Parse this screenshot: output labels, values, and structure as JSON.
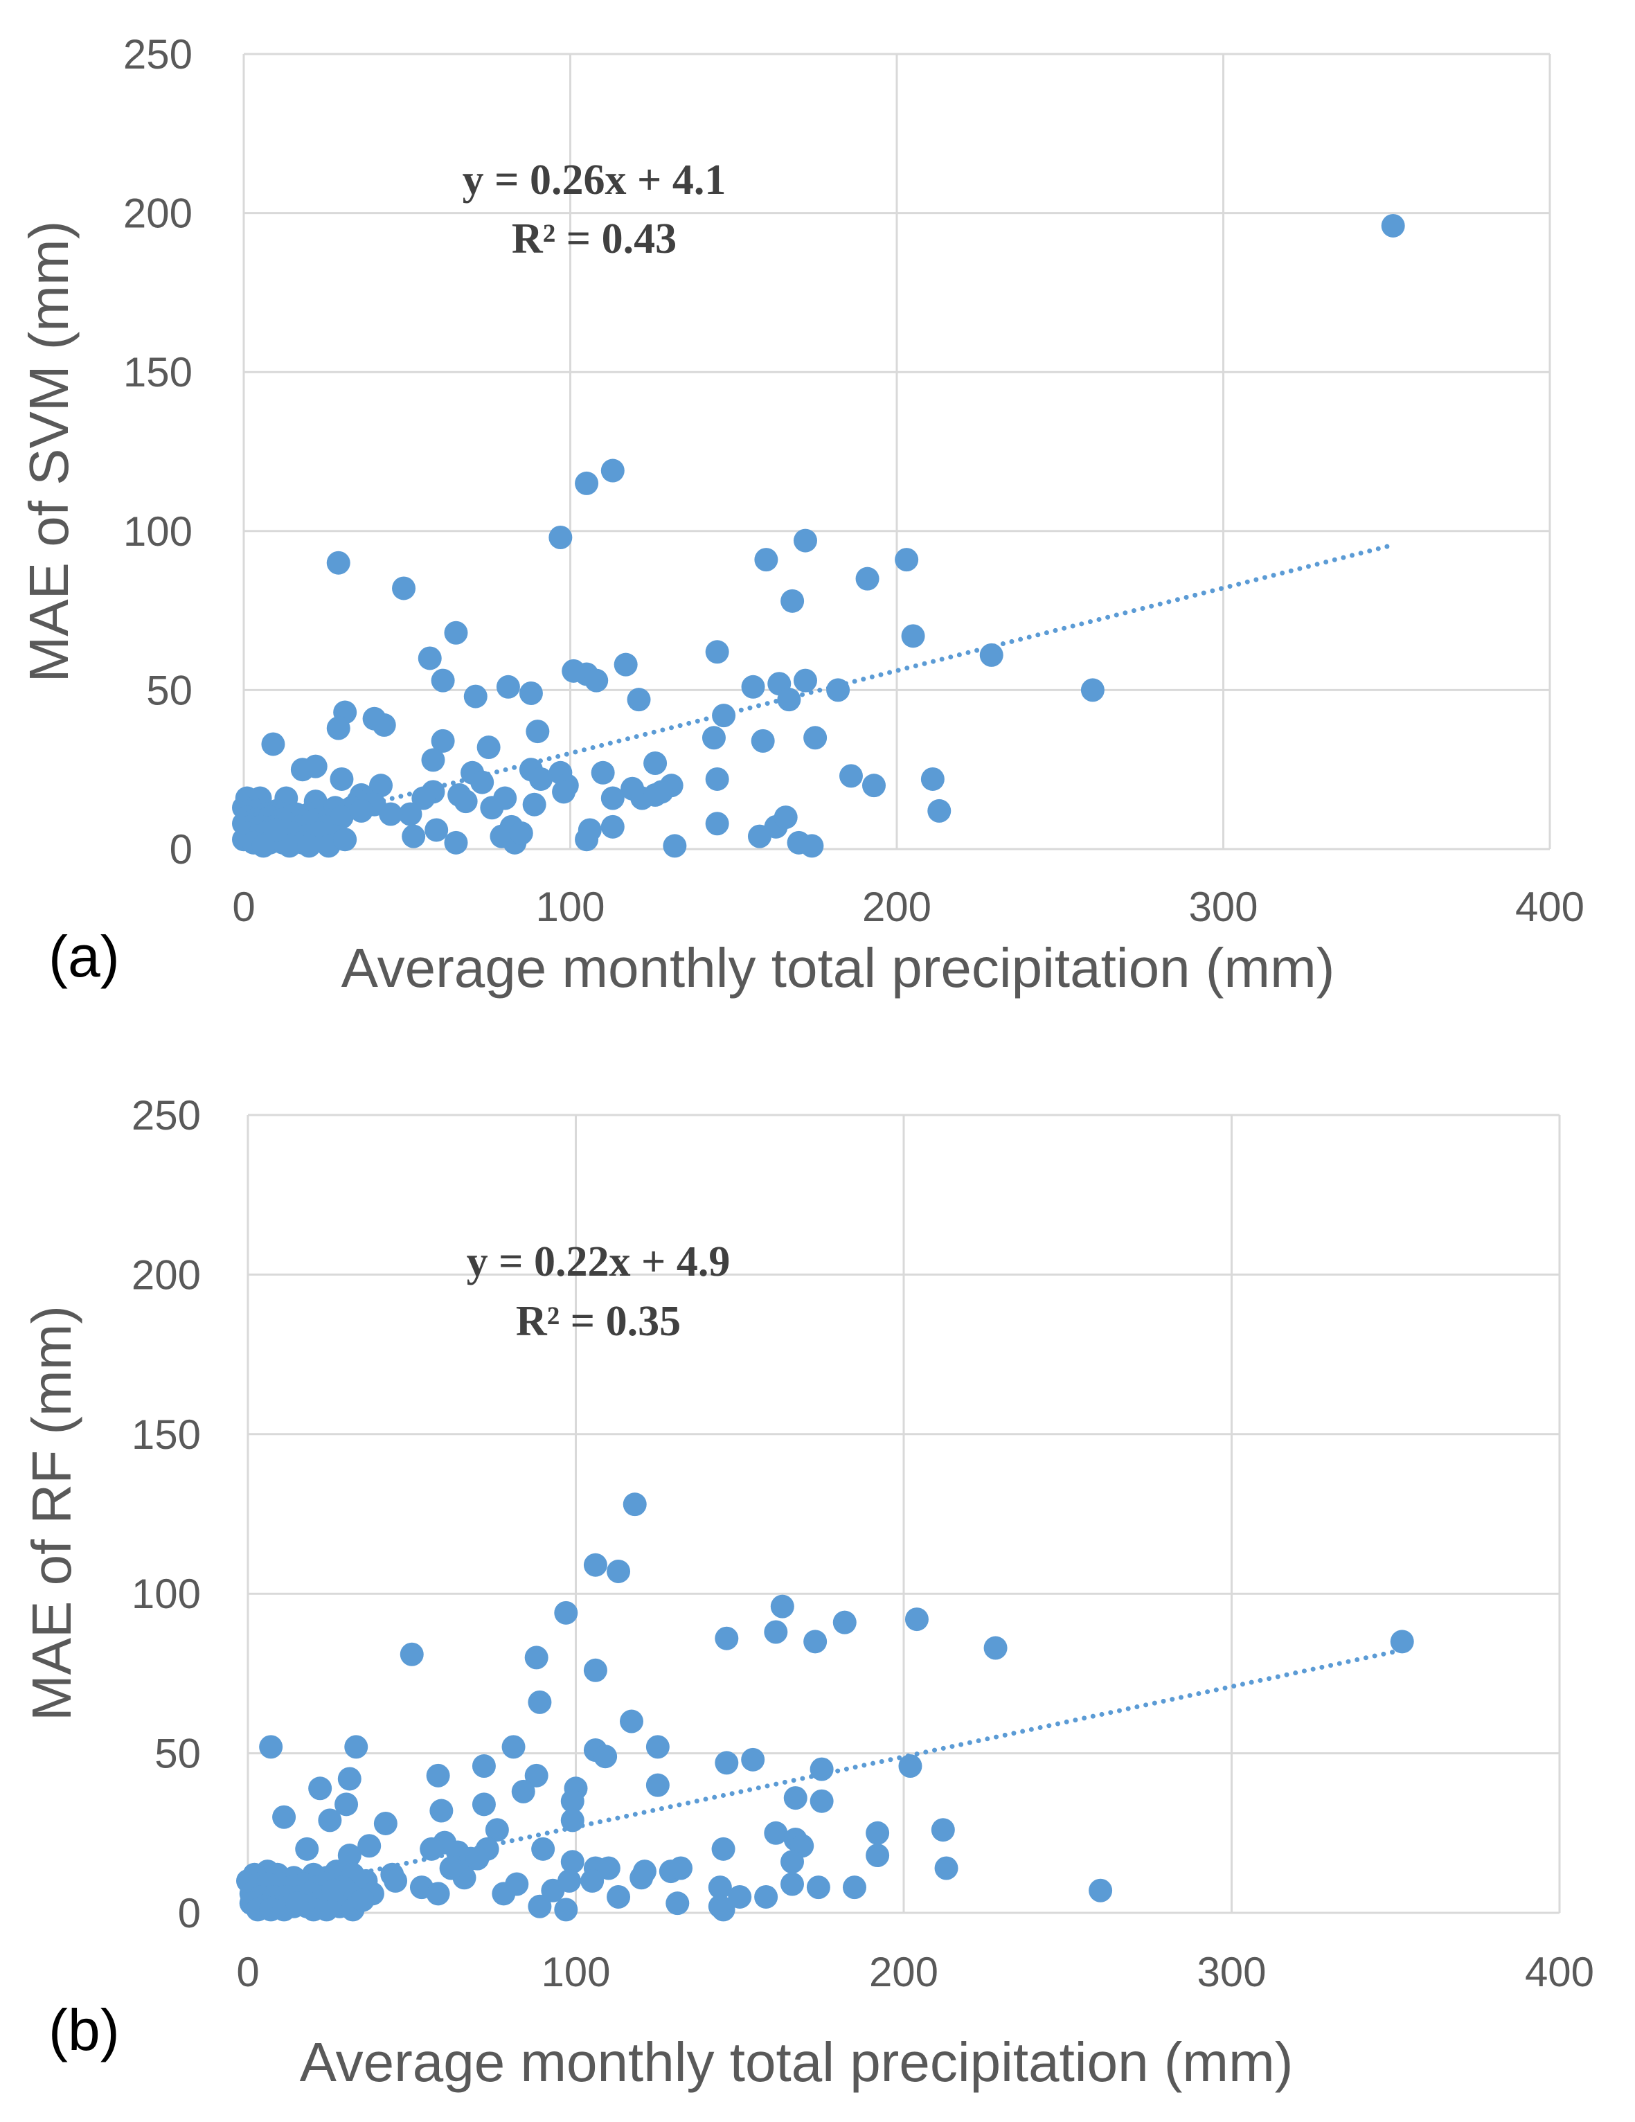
{
  "colors": {
    "point": "#5B9BD5",
    "grid": "#d9d9d9",
    "text": "#595959",
    "equation": "#404040"
  },
  "chart_data": [
    {
      "type": "scatter",
      "panel_label": "(a)",
      "xlabel": "Average monthly total precipitation (mm)",
      "ylabel": "MAE of SVM (mm)",
      "xlim": [
        0,
        400
      ],
      "ylim": [
        0,
        250
      ],
      "xticks": [
        "0",
        "100",
        "200",
        "300",
        "400"
      ],
      "yticks": [
        "0",
        "50",
        "100",
        "150",
        "200",
        "250"
      ],
      "grid": true,
      "trendline": {
        "type": "linear",
        "slope": 0.26,
        "intercept": 4.1,
        "x_range": [
          0,
          352
        ]
      },
      "equation": "y = 0.26x + 4.1",
      "r_squared": "R² = 0.43",
      "points": [
        [
          352,
          196
        ],
        [
          113,
          119
        ],
        [
          105,
          115
        ],
        [
          97,
          98
        ],
        [
          172,
          97
        ],
        [
          160,
          91
        ],
        [
          203,
          91
        ],
        [
          29,
          90
        ],
        [
          191,
          85
        ],
        [
          49,
          82
        ],
        [
          168,
          78
        ],
        [
          65,
          68
        ],
        [
          205,
          67
        ],
        [
          229,
          61
        ],
        [
          57,
          60
        ],
        [
          145,
          62
        ],
        [
          117,
          58
        ],
        [
          101,
          56
        ],
        [
          105,
          55
        ],
        [
          108,
          53
        ],
        [
          61,
          53
        ],
        [
          172,
          53
        ],
        [
          164,
          52
        ],
        [
          156,
          51
        ],
        [
          182,
          50
        ],
        [
          260,
          50
        ],
        [
          81,
          51
        ],
        [
          88,
          49
        ],
        [
          71,
          48
        ],
        [
          121,
          47
        ],
        [
          167,
          47
        ],
        [
          31,
          43
        ],
        [
          40,
          41
        ],
        [
          43,
          39
        ],
        [
          147,
          42
        ],
        [
          29,
          38
        ],
        [
          90,
          37
        ],
        [
          61,
          34
        ],
        [
          144,
          35
        ],
        [
          159,
          34
        ],
        [
          175,
          35
        ],
        [
          9,
          33
        ],
        [
          75,
          32
        ],
        [
          58,
          28
        ],
        [
          126,
          27
        ],
        [
          22,
          26
        ],
        [
          18,
          25
        ],
        [
          88,
          25
        ],
        [
          97,
          24
        ],
        [
          110,
          24
        ],
        [
          70,
          24
        ],
        [
          186,
          23
        ],
        [
          73,
          21
        ],
        [
          145,
          22
        ],
        [
          211,
          22
        ],
        [
          30,
          22
        ],
        [
          42,
          20
        ],
        [
          91,
          22
        ],
        [
          99,
          20
        ],
        [
          119,
          19
        ],
        [
          131,
          20
        ],
        [
          193,
          20
        ],
        [
          98,
          18
        ],
        [
          58,
          18
        ],
        [
          66,
          17
        ],
        [
          55,
          16
        ],
        [
          80,
          16
        ],
        [
          113,
          16
        ],
        [
          122,
          16
        ],
        [
          126,
          17
        ],
        [
          128,
          18
        ],
        [
          36,
          17
        ],
        [
          5,
          16
        ],
        [
          1,
          16
        ],
        [
          13,
          16
        ],
        [
          22,
          15
        ],
        [
          35,
          15
        ],
        [
          40,
          14
        ],
        [
          33,
          13
        ],
        [
          89,
          14
        ],
        [
          0,
          13
        ],
        [
          2,
          12
        ],
        [
          4,
          12
        ],
        [
          7,
          11
        ],
        [
          10,
          12
        ],
        [
          12,
          11
        ],
        [
          16,
          11
        ],
        [
          20,
          11
        ],
        [
          24,
          12
        ],
        [
          28,
          13
        ],
        [
          51,
          11
        ],
        [
          213,
          12
        ],
        [
          1,
          10
        ],
        [
          3,
          9
        ],
        [
          6,
          9
        ],
        [
          8,
          10
        ],
        [
          11,
          9
        ],
        [
          14,
          10
        ],
        [
          18,
          9
        ],
        [
          22,
          9
        ],
        [
          26,
          9
        ],
        [
          30,
          10
        ],
        [
          0,
          8
        ],
        [
          2,
          7
        ],
        [
          5,
          7
        ],
        [
          9,
          7
        ],
        [
          13,
          8
        ],
        [
          17,
          7
        ],
        [
          21,
          8
        ],
        [
          25,
          7
        ],
        [
          145,
          8
        ],
        [
          163,
          7
        ],
        [
          166,
          10
        ],
        [
          82,
          7
        ],
        [
          59,
          6
        ],
        [
          106,
          6
        ],
        [
          113,
          7
        ],
        [
          1,
          5
        ],
        [
          4,
          4
        ],
        [
          7,
          5
        ],
        [
          11,
          4
        ],
        [
          15,
          5
        ],
        [
          19,
          4
        ],
        [
          23,
          5
        ],
        [
          28,
          4
        ],
        [
          52,
          4
        ],
        [
          79,
          4
        ],
        [
          105,
          3
        ],
        [
          170,
          2
        ],
        [
          158,
          4
        ],
        [
          0,
          3
        ],
        [
          3,
          2
        ],
        [
          8,
          2
        ],
        [
          12,
          2
        ],
        [
          18,
          2
        ],
        [
          26,
          1
        ],
        [
          65,
          2
        ],
        [
          83,
          2
        ],
        [
          132,
          1
        ],
        [
          174,
          1
        ],
        [
          6,
          1
        ],
        [
          14,
          1
        ],
        [
          20,
          1
        ],
        [
          31,
          3
        ],
        [
          10,
          6
        ],
        [
          36,
          12
        ],
        [
          45,
          11
        ],
        [
          68,
          15
        ],
        [
          76,
          13
        ],
        [
          85,
          5
        ]
      ]
    },
    {
      "type": "scatter",
      "panel_label": "(b)",
      "xlabel": "Average monthly total precipitation (mm)",
      "ylabel": "MAE of RF (mm)",
      "xlim": [
        0,
        400
      ],
      "ylim": [
        0,
        250
      ],
      "xticks": [
        "0",
        "100",
        "200",
        "300",
        "400"
      ],
      "yticks": [
        "0",
        "50",
        "100",
        "150",
        "200",
        "250"
      ],
      "grid": true,
      "trendline": {
        "type": "linear",
        "slope": 0.22,
        "intercept": 4.9,
        "x_range": [
          0,
          352
        ]
      },
      "equation": "y = 0.22x + 4.9",
      "r_squared": "R² = 0.35",
      "points": [
        [
          118,
          128
        ],
        [
          106,
          109
        ],
        [
          113,
          107
        ],
        [
          97,
          94
        ],
        [
          163,
          96
        ],
        [
          204,
          92
        ],
        [
          182,
          91
        ],
        [
          161,
          88
        ],
        [
          146,
          86
        ],
        [
          173,
          85
        ],
        [
          352,
          85
        ],
        [
          228,
          83
        ],
        [
          50,
          81
        ],
        [
          88,
          80
        ],
        [
          106,
          76
        ],
        [
          89,
          66
        ],
        [
          117,
          60
        ],
        [
          7,
          52
        ],
        [
          33,
          52
        ],
        [
          81,
          52
        ],
        [
          125,
          52
        ],
        [
          106,
          51
        ],
        [
          109,
          49
        ],
        [
          154,
          48
        ],
        [
          146,
          47
        ],
        [
          202,
          46
        ],
        [
          72,
          46
        ],
        [
          175,
          45
        ],
        [
          58,
          43
        ],
        [
          88,
          43
        ],
        [
          31,
          42
        ],
        [
          125,
          40
        ],
        [
          22,
          39
        ],
        [
          100,
          39
        ],
        [
          84,
          38
        ],
        [
          167,
          36
        ],
        [
          99,
          35
        ],
        [
          30,
          34
        ],
        [
          72,
          34
        ],
        [
          59,
          32
        ],
        [
          175,
          35
        ],
        [
          11,
          30
        ],
        [
          25,
          29
        ],
        [
          99,
          29
        ],
        [
          42,
          28
        ],
        [
          212,
          26
        ],
        [
          161,
          25
        ],
        [
          192,
          25
        ],
        [
          76,
          26
        ],
        [
          167,
          23
        ],
        [
          60,
          22
        ],
        [
          37,
          21
        ],
        [
          18,
          20
        ],
        [
          56,
          20
        ],
        [
          64,
          19
        ],
        [
          73,
          20
        ],
        [
          90,
          20
        ],
        [
          145,
          20
        ],
        [
          169,
          21
        ],
        [
          192,
          18
        ],
        [
          31,
          18
        ],
        [
          68,
          17
        ],
        [
          99,
          16
        ],
        [
          106,
          14
        ],
        [
          110,
          14
        ],
        [
          121,
          13
        ],
        [
          129,
          13
        ],
        [
          132,
          14
        ],
        [
          44,
          12
        ],
        [
          166,
          16
        ],
        [
          213,
          14
        ],
        [
          6,
          13
        ],
        [
          2,
          12
        ],
        [
          9,
          12
        ],
        [
          14,
          11
        ],
        [
          20,
          12
        ],
        [
          24,
          11
        ],
        [
          27,
          13
        ],
        [
          32,
          12
        ],
        [
          36,
          10
        ],
        [
          0,
          10
        ],
        [
          3,
          9
        ],
        [
          6,
          9
        ],
        [
          10,
          9
        ],
        [
          13,
          8
        ],
        [
          17,
          9
        ],
        [
          21,
          8
        ],
        [
          25,
          9
        ],
        [
          29,
          8
        ],
        [
          66,
          11
        ],
        [
          53,
          8
        ],
        [
          82,
          9
        ],
        [
          98,
          10
        ],
        [
          105,
          10
        ],
        [
          144,
          8
        ],
        [
          166,
          9
        ],
        [
          174,
          8
        ],
        [
          185,
          8
        ],
        [
          260,
          7
        ],
        [
          38,
          6
        ],
        [
          1,
          6
        ],
        [
          4,
          5
        ],
        [
          8,
          5
        ],
        [
          12,
          5
        ],
        [
          16,
          5
        ],
        [
          19,
          6
        ],
        [
          23,
          5
        ],
        [
          27,
          5
        ],
        [
          31,
          6
        ],
        [
          58,
          6
        ],
        [
          78,
          6
        ],
        [
          113,
          5
        ],
        [
          158,
          5
        ],
        [
          131,
          3
        ],
        [
          1,
          3
        ],
        [
          5,
          2
        ],
        [
          9,
          2
        ],
        [
          14,
          2
        ],
        [
          18,
          2
        ],
        [
          23,
          3
        ],
        [
          28,
          2
        ],
        [
          32,
          1
        ],
        [
          89,
          2
        ],
        [
          97,
          1
        ],
        [
          144,
          2
        ],
        [
          145,
          1
        ],
        [
          3,
          1
        ],
        [
          7,
          1
        ],
        [
          11,
          1
        ],
        [
          20,
          1
        ],
        [
          24,
          1
        ],
        [
          15,
          3
        ],
        [
          26,
          7
        ],
        [
          35,
          4
        ],
        [
          45,
          10
        ],
        [
          62,
          14
        ],
        [
          70,
          17
        ],
        [
          93,
          7
        ],
        [
          120,
          11
        ],
        [
          150,
          5
        ]
      ]
    }
  ]
}
